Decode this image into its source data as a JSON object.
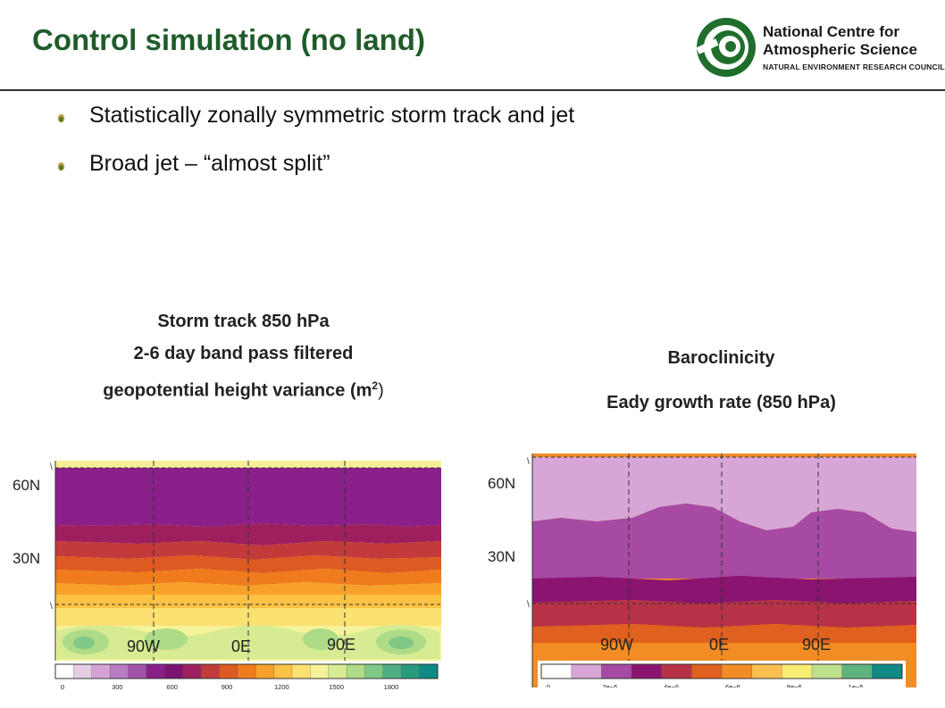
{
  "title": "Control simulation (no land)",
  "logo": {
    "line1": "National Centre for",
    "line2": "Atmospheric Science",
    "line3": "NATURAL ENVIRONMENT RESEARCH COUNCIL",
    "color": "#1f6e2c"
  },
  "bullets": [
    "Statistically zonally symmetric storm track and jet",
    "Broad jet – “almost split”"
  ],
  "left_panel": {
    "title_line1": "Storm track 850 hPa",
    "title_line2": "2-6 day band pass filtered",
    "title_line3": "geopotential height variance (m",
    "title_sup": "2",
    "title_close": ")",
    "lat_labels": [
      "60N",
      "30N"
    ],
    "lon_labels": [
      "90W",
      "0E",
      "90E"
    ],
    "colorbar_ticks": [
      "0",
      "300",
      "600",
      "900",
      "1200",
      "1500",
      "1800"
    ],
    "colorbar_colors": [
      "#ffffff",
      "#e6cde6",
      "#d4a3d4",
      "#b97cc2",
      "#a052a8",
      "#8a1f8a",
      "#7a1470",
      "#9e1f5e",
      "#c23a3a",
      "#dd5a22",
      "#f07b1d",
      "#f7a12a",
      "#fbc244",
      "#fbe072",
      "#f5f39a",
      "#d6eb92",
      "#aedb87",
      "#7fc886",
      "#4eae82",
      "#2a9a7d",
      "#0f8a86"
    ]
  },
  "right_panel": {
    "title_line1": "Baroclinicity",
    "title_line2": "Eady growth rate (850 hPa)",
    "lat_labels": [
      "60N",
      "30N"
    ],
    "lon_labels": [
      "90W",
      "0E",
      "90E"
    ],
    "colorbar_ticks": [
      "0",
      "2e−6",
      "4e−6",
      "6e−6",
      "8e−6",
      "1e−5"
    ],
    "colorbar_colors": [
      "#ffffff",
      "#d7a6d6",
      "#a64aa4",
      "#8a1470",
      "#b73246",
      "#e0611f",
      "#f28c25",
      "#fbbf50",
      "#f9ec72",
      "#bfe08a",
      "#5eb37e",
      "#0f8a86"
    ]
  }
}
